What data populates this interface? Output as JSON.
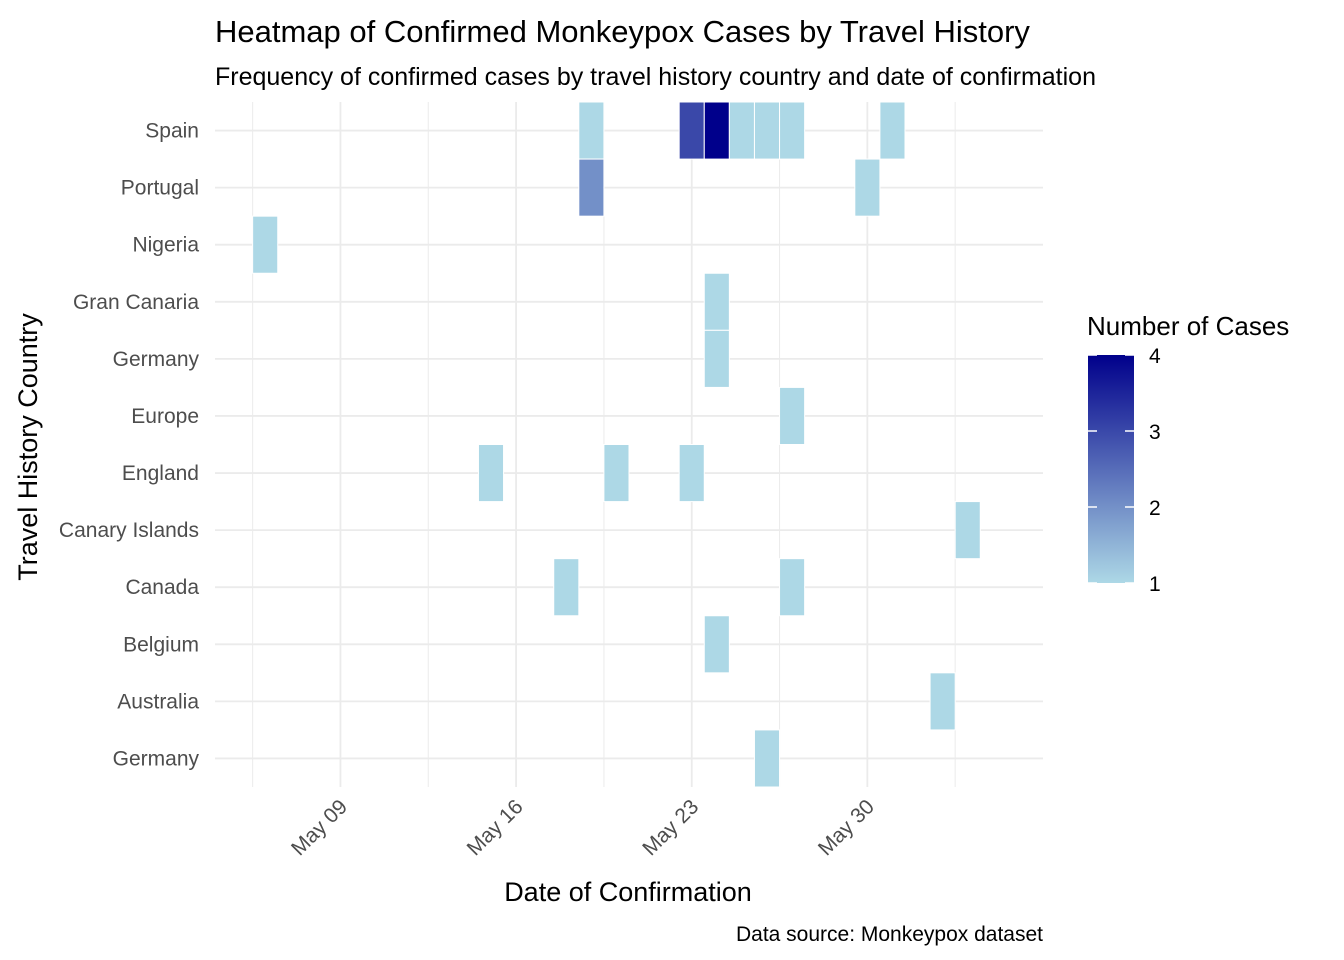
{
  "chart_data": {
    "type": "heatmap",
    "title": "Heatmap of Confirmed Monkeypox Cases by Travel History",
    "subtitle": "Frequency of confirmed cases by travel history country and date of confirmation",
    "xlabel": "Date of Confirmation",
    "ylabel": "Travel History Country",
    "caption": "Data source: Monkeypox dataset",
    "x_ticks": [
      "May 09",
      "May 16",
      "May 23",
      "May 30"
    ],
    "x_tick_dates": [
      "2022-05-09",
      "2022-05-16",
      "2022-05-23",
      "2022-05-30"
    ],
    "xlim": [
      "2022-05-04",
      "2022-06-06"
    ],
    "y_categories": [
      "Spain",
      "Portugal",
      "Nigeria",
      "Gran Canaria",
      "Germany",
      "Europe",
      "England",
      "Canary Islands",
      "Canada",
      "Belgium",
      "Australia",
      "Germany "
    ],
    "cells": [
      {
        "country": "Spain",
        "date": "2022-05-19",
        "count": 1
      },
      {
        "country": "Spain",
        "date": "2022-05-23",
        "count": 3
      },
      {
        "country": "Spain",
        "date": "2022-05-24",
        "count": 4
      },
      {
        "country": "Spain",
        "date": "2022-05-25",
        "count": 1
      },
      {
        "country": "Spain",
        "date": "2022-05-26",
        "count": 1
      },
      {
        "country": "Spain",
        "date": "2022-05-27",
        "count": 1
      },
      {
        "country": "Spain",
        "date": "2022-05-31",
        "count": 1
      },
      {
        "country": "Portugal",
        "date": "2022-05-19",
        "count": 2
      },
      {
        "country": "Portugal",
        "date": "2022-05-30",
        "count": 1
      },
      {
        "country": "Nigeria",
        "date": "2022-05-06",
        "count": 1
      },
      {
        "country": "Gran Canaria",
        "date": "2022-05-24",
        "count": 1
      },
      {
        "country": "Germany",
        "date": "2022-05-24",
        "count": 1
      },
      {
        "country": "Europe",
        "date": "2022-05-27",
        "count": 1
      },
      {
        "country": "England",
        "date": "2022-05-15",
        "count": 1
      },
      {
        "country": "England",
        "date": "2022-05-20",
        "count": 1
      },
      {
        "country": "England",
        "date": "2022-05-23",
        "count": 1
      },
      {
        "country": "Canary Islands",
        "date": "2022-06-03",
        "count": 1
      },
      {
        "country": "Canada",
        "date": "2022-05-18",
        "count": 1
      },
      {
        "country": "Canada",
        "date": "2022-05-27",
        "count": 1
      },
      {
        "country": "Belgium",
        "date": "2022-05-24",
        "count": 1
      },
      {
        "country": "Australia",
        "date": "2022-06-02",
        "count": 1
      },
      {
        "country": "Germany ",
        "date": "2022-05-26",
        "count": 1
      }
    ],
    "legend": {
      "title": "Number of Cases",
      "position": "right",
      "min": 1,
      "max": 4,
      "ticks": [
        1,
        2,
        3,
        4
      ],
      "low_color": "#add8e6",
      "high_color": "#00008b"
    },
    "grid": true
  }
}
